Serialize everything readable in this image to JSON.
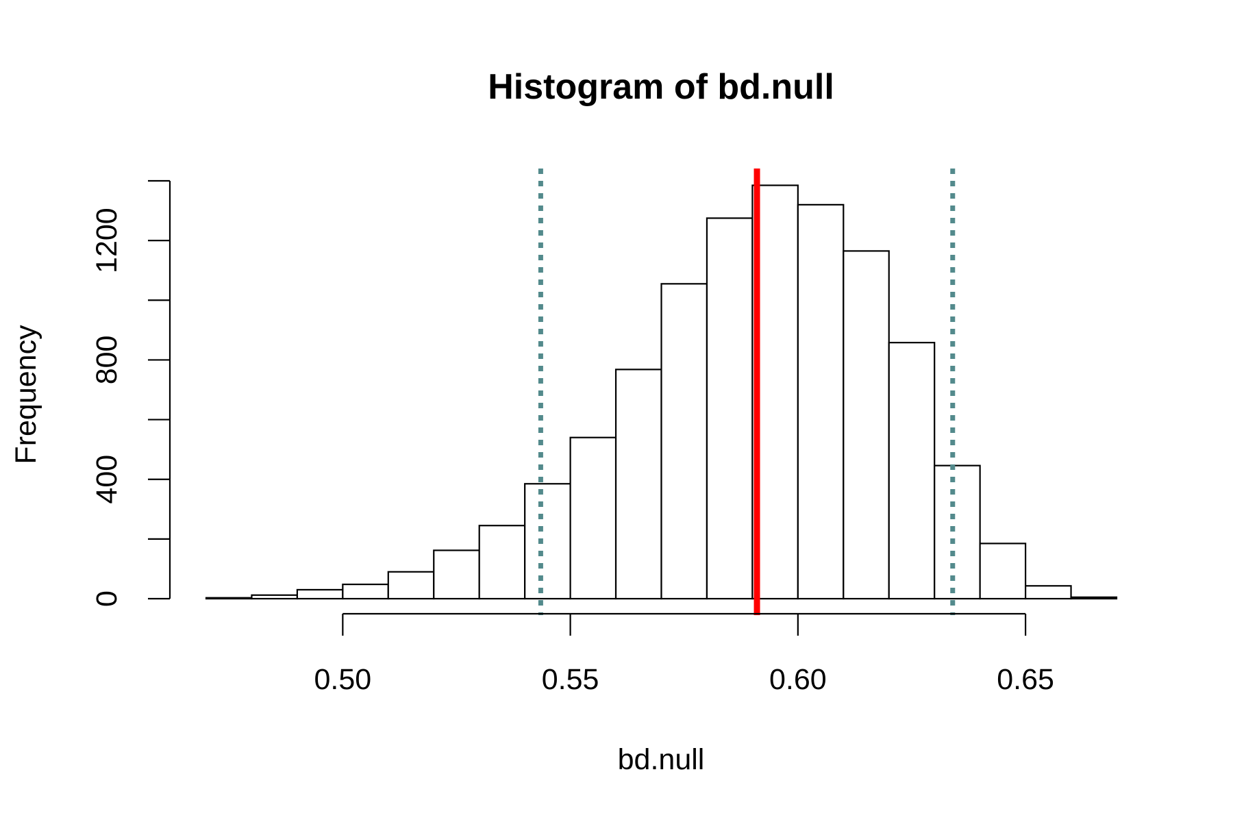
{
  "chart_data": {
    "type": "bar",
    "title": "Histogram of bd.null",
    "xlabel": "bd.null",
    "ylabel": "Frequency",
    "xlim": [
      0.47,
      0.67
    ],
    "ylim": [
      0,
      1400
    ],
    "x_ticks": [
      0.5,
      0.55,
      0.6,
      0.65
    ],
    "x_tick_labels": [
      "0.50",
      "0.55",
      "0.60",
      "0.65"
    ],
    "y_ticks": [
      0,
      200,
      400,
      600,
      800,
      1000,
      1200,
      1400
    ],
    "y_tick_labels": [
      "0",
      "400",
      "800",
      "1200"
    ],
    "y_tick_label_values": [
      0,
      400,
      800,
      1200
    ],
    "bin_width": 0.01,
    "bins": [
      {
        "x0": 0.47,
        "x1": 0.48,
        "count": 3
      },
      {
        "x0": 0.48,
        "x1": 0.49,
        "count": 12
      },
      {
        "x0": 0.49,
        "x1": 0.5,
        "count": 30
      },
      {
        "x0": 0.5,
        "x1": 0.51,
        "count": 48
      },
      {
        "x0": 0.51,
        "x1": 0.52,
        "count": 90
      },
      {
        "x0": 0.52,
        "x1": 0.53,
        "count": 162
      },
      {
        "x0": 0.53,
        "x1": 0.54,
        "count": 245
      },
      {
        "x0": 0.54,
        "x1": 0.55,
        "count": 385
      },
      {
        "x0": 0.55,
        "x1": 0.56,
        "count": 540
      },
      {
        "x0": 0.56,
        "x1": 0.57,
        "count": 768
      },
      {
        "x0": 0.57,
        "x1": 0.58,
        "count": 1055
      },
      {
        "x0": 0.58,
        "x1": 0.59,
        "count": 1275
      },
      {
        "x0": 0.59,
        "x1": 0.6,
        "count": 1385
      },
      {
        "x0": 0.6,
        "x1": 0.61,
        "count": 1320
      },
      {
        "x0": 0.61,
        "x1": 0.62,
        "count": 1165
      },
      {
        "x0": 0.62,
        "x1": 0.63,
        "count": 858
      },
      {
        "x0": 0.63,
        "x1": 0.64,
        "count": 446
      },
      {
        "x0": 0.64,
        "x1": 0.65,
        "count": 185
      },
      {
        "x0": 0.65,
        "x1": 0.66,
        "count": 43
      },
      {
        "x0": 0.66,
        "x1": 0.67,
        "count": 5
      }
    ],
    "reference_lines": [
      {
        "x": 0.5435,
        "style": "dotted",
        "color": "#538A8C"
      },
      {
        "x": 0.591,
        "style": "solid",
        "color": "#FF0000"
      },
      {
        "x": 0.634,
        "style": "dotted",
        "color": "#538A8C"
      }
    ],
    "grid": false,
    "legend": "none"
  }
}
